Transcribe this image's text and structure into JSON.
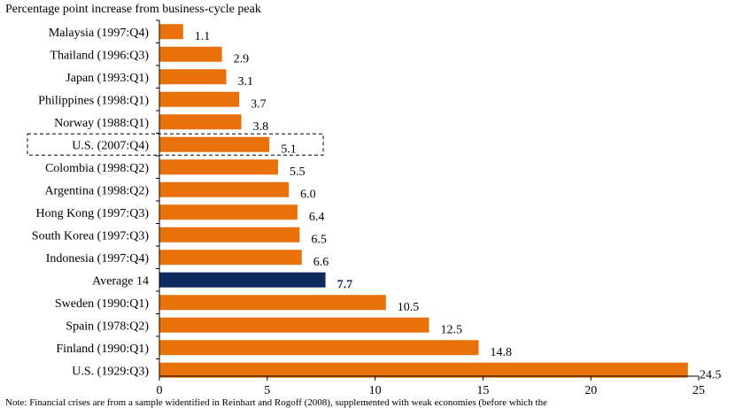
{
  "chart_data": {
    "type": "bar",
    "orientation": "horizontal",
    "subtitle": "Percentage point increase from business-cycle peak",
    "categories": [
      "Malaysia (1997:Q4)",
      "Thailand (1996:Q3)",
      "Japan (1993:Q1)",
      "Philippines (1998:Q1)",
      "Norway (1988:Q1)",
      "U.S. (2007:Q4)",
      "Colombia (1998:Q2)",
      "Argentina (1998:Q2)",
      "Hong Kong (1997:Q3)",
      "South Korea (1997:Q3)",
      "Indonesia (1997:Q4)",
      "Average 14",
      "Sweden (1990:Q1)",
      "Spain (1978:Q2)",
      "Finland (1990:Q1)",
      "U.S. (1929:Q3)"
    ],
    "values": [
      1.1,
      2.9,
      3.1,
      3.7,
      3.8,
      5.1,
      5.5,
      6.0,
      6.4,
      6.5,
      6.6,
      7.7,
      10.5,
      12.5,
      14.8,
      24.5
    ],
    "value_labels": [
      "1.1",
      "2.9",
      "3.1",
      "3.7",
      "3.8",
      "5.1",
      "5.5",
      "6.0",
      "6.4",
      "6.5",
      "6.6",
      "7.7",
      "10.5",
      "12.5",
      "14.8",
      "24.5"
    ],
    "highlighted_category": "Average 14",
    "boxed_category": "U.S. (2007:Q4)",
    "xlim": [
      0,
      25
    ],
    "xticks": [
      0,
      5,
      10,
      15,
      20,
      25
    ],
    "grid": false,
    "colors": {
      "bar": "#e8710a",
      "highlight_bar": "#10295e",
      "highlight_label": "#10295e",
      "axis": "#000000",
      "box": "#000000"
    }
  },
  "note": "Note: Financial crises are from a sample widentified in Reinhart and Rogoff (2008), supplemented with weak economies (before which the"
}
